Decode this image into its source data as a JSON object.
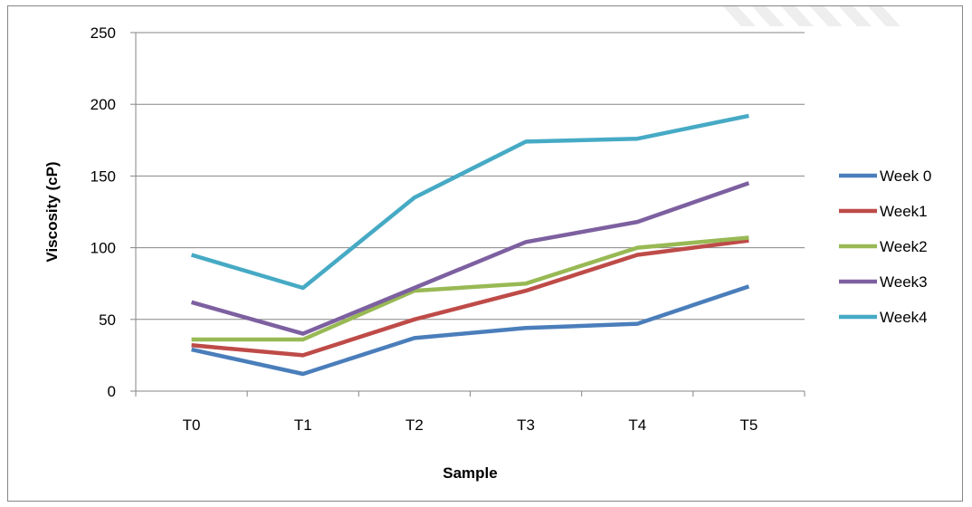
{
  "chart_data": {
    "type": "line",
    "title": "",
    "xlabel": "Sample",
    "ylabel": "Viscosity (cP)",
    "categories": [
      "T0",
      "T1",
      "T2",
      "T3",
      "T4",
      "T5"
    ],
    "ylim": [
      0,
      250
    ],
    "yticks": [
      0,
      50,
      100,
      150,
      200,
      250
    ],
    "y_tick_labels": [
      "0",
      "50",
      "100",
      "150",
      "200",
      "250"
    ],
    "grid": "horizontal",
    "legend_position": "right",
    "series": [
      {
        "name": "Week 0",
        "color": "#4a7ebb",
        "values": [
          29,
          12,
          37,
          44,
          47,
          73
        ]
      },
      {
        "name": "Week1",
        "color": "#be4b48",
        "values": [
          32,
          25,
          50,
          70,
          95,
          105
        ]
      },
      {
        "name": "Week2",
        "color": "#98b954",
        "values": [
          36,
          36,
          70,
          75,
          100,
          107
        ]
      },
      {
        "name": "Week3",
        "color": "#7d60a0",
        "values": [
          62,
          40,
          72,
          104,
          118,
          145
        ]
      },
      {
        "name": "Week4",
        "color": "#46aac5",
        "values": [
          95,
          72,
          135,
          174,
          176,
          192
        ]
      }
    ]
  }
}
